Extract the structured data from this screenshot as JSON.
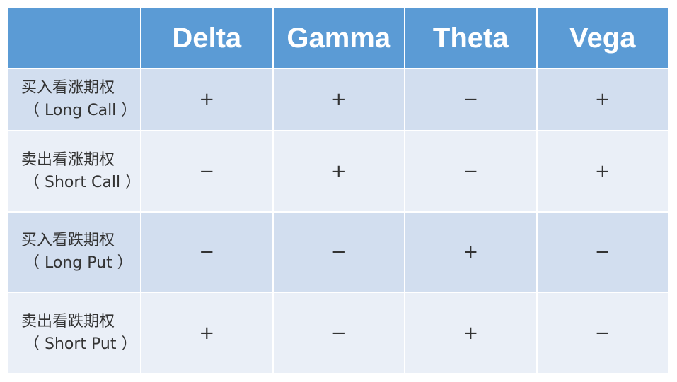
{
  "header": {
    "corner": "",
    "columns": [
      "Delta",
      "Gamma",
      "Theta",
      "Vega"
    ]
  },
  "rows": [
    {
      "label_cn": "买入看涨期权",
      "label_en": "（ Long Call ）",
      "signs": [
        "+",
        "+",
        "−",
        "+"
      ]
    },
    {
      "label_cn": "卖出看涨期权",
      "label_en": "（ Short Call ）",
      "signs": [
        "−",
        "+",
        "−",
        "+"
      ]
    },
    {
      "label_cn": "买入看跌期权",
      "label_en": "（ Long Put ）",
      "signs": [
        "−",
        "−",
        "+",
        "−"
      ]
    },
    {
      "label_cn": "卖出看跌期权",
      "label_en": "（ Short Put ）",
      "signs": [
        "+",
        "−",
        "+",
        "−"
      ]
    }
  ],
  "colors": {
    "header": "#5B9BD5",
    "row_dark": "#D2DEEF",
    "row_light": "#EAEFF7"
  }
}
